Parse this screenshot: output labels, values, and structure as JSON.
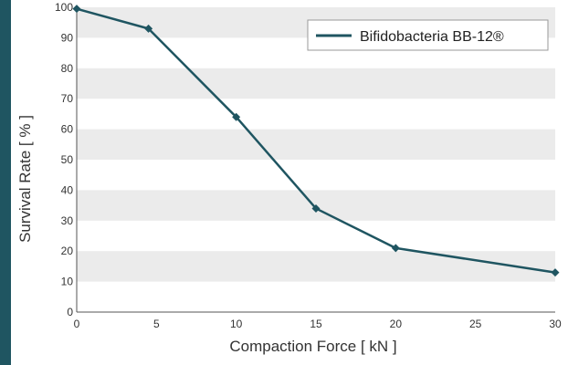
{
  "chart_data": {
    "type": "line",
    "title": "",
    "xlabel": "Compaction Force [ kN ]",
    "ylabel": "Survival Rate [ % ]",
    "xlim": [
      0,
      30
    ],
    "ylim": [
      0,
      100
    ],
    "x_ticks": [
      0,
      5,
      10,
      15,
      20,
      25,
      30
    ],
    "y_ticks": [
      0,
      10,
      20,
      30,
      40,
      50,
      60,
      70,
      80,
      90,
      100
    ],
    "grid": "alternating horizontal bands",
    "legend_position": "top-right",
    "series": [
      {
        "name": "Bifidobacteria BB-12®",
        "color": "#1f5561",
        "marker": "diamond",
        "x": [
          0,
          4.5,
          10,
          15,
          20,
          30
        ],
        "y": [
          99.5,
          93,
          64,
          34,
          21,
          13
        ]
      }
    ]
  },
  "colors": {
    "band": "#ebebeb",
    "axis": "#555555",
    "accent_bar": "#1f5561"
  }
}
